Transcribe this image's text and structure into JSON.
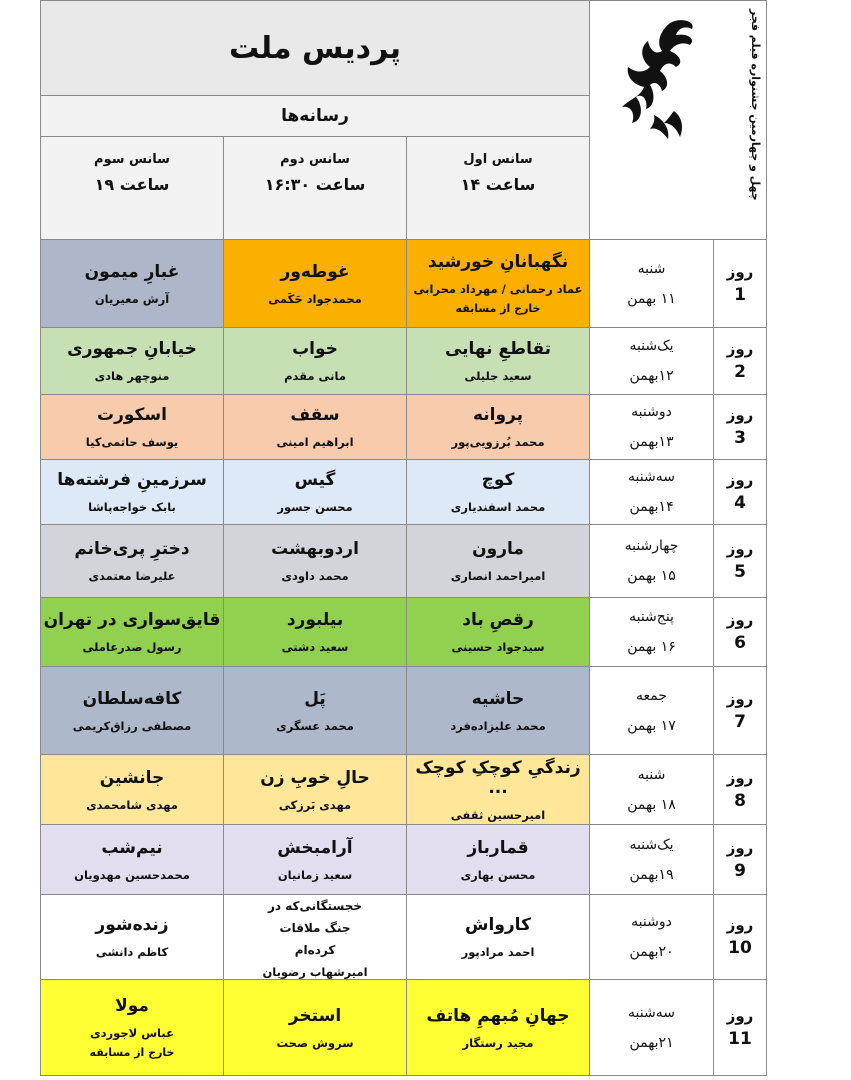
{
  "header": {
    "title": "پردیس ملت",
    "festival": "چهل و چهارمین جشنواره فیلم فجر",
    "section": "رسانه‌ها",
    "sessions": [
      {
        "name": "سانس اول",
        "time": "ساعت ۱۴"
      },
      {
        "name": "سانس دوم",
        "time": "ساعت ۱۶:۳۰"
      },
      {
        "name": "سانس سوم",
        "time": "ساعت ۱۹"
      }
    ]
  },
  "rows": [
    {
      "day_label": "روز",
      "day_number": "1",
      "weekday": "شنبه",
      "date": "۱۱ بهمن",
      "cells": [
        {
          "title": "نگهبانانِ خورشید",
          "director": "عماد رحمانی / مهرداد محرابی",
          "note": "خارج از مسابقه",
          "color": "#fbb000"
        },
        {
          "title": "غوطه‌ور",
          "director": "محمدجواد حَکَمی",
          "color": "#fbb000"
        },
        {
          "title": "غبارِ میمون",
          "director": "آرش معیریان",
          "color": "#aeb7c9"
        }
      ]
    },
    {
      "day_label": "روز",
      "day_number": "2",
      "weekday": "یک‌شنبه",
      "date": "۱۲بهمن",
      "cells": [
        {
          "title": "تقاطعِ نهایی",
          "director": "سعید جلیلی",
          "color": "#c6e0b4"
        },
        {
          "title": "خواب",
          "director": "مانی مقدم",
          "color": "#c6e0b4"
        },
        {
          "title": "خیابانِ جمهوری",
          "director": "منوچهر هادی",
          "color": "#c6e0b4"
        }
      ]
    },
    {
      "day_label": "روز",
      "day_number": "3",
      "weekday": "دوشنبه",
      "date": "۱۳بهمن",
      "cells": [
        {
          "title": "پروانه",
          "director": "محمد بُرزویی‌پور",
          "color": "#f8cbad"
        },
        {
          "title": "سقف",
          "director": "ابراهیم امینی",
          "color": "#f8cbad"
        },
        {
          "title": "اسکورت",
          "director": "یوسف حاتمی‌کیا",
          "color": "#f8cbad"
        }
      ]
    },
    {
      "day_label": "روز",
      "day_number": "4",
      "weekday": "سه‌شنبه",
      "date": "۱۴بهمن",
      "cells": [
        {
          "title": "کوچ",
          "director": "محمد اسفندیاری",
          "color": "#dde9f6"
        },
        {
          "title": "گیس",
          "director": "محسن جسور",
          "color": "#dde9f6"
        },
        {
          "title": "سرزمینِ فرشته‌ها",
          "director": "بابک خواجه‌پاشا",
          "color": "#dde9f6"
        }
      ]
    },
    {
      "day_label": "روز",
      "day_number": "5",
      "weekday": "چهارشنبه",
      "date": "۱۵ بهمن",
      "cells": [
        {
          "title": "مارون",
          "director": "امیراحمد انصاری",
          "color": "#d3d3da"
        },
        {
          "title": "اردوبهشت",
          "director": "محمد داودی",
          "color": "#d3d3da"
        },
        {
          "title": "دخترِ پری‌خانم",
          "director": "علیرضا معتمدی",
          "color": "#d3d3da"
        }
      ]
    },
    {
      "day_label": "روز",
      "day_number": "6",
      "weekday": "پنج‌شنبه",
      "date": "۱۶ بهمن",
      "cells": [
        {
          "title": "رقصِ باد",
          "director": "سیدجواد حسینی",
          "color": "#92d050"
        },
        {
          "title": "بیلبورد",
          "director": "سعید دشتی",
          "color": "#92d050"
        },
        {
          "title": "قایق‌سواری در تهران",
          "director": "رسول صدرعاملی",
          "color": "#92d050"
        }
      ]
    },
    {
      "day_label": "روز",
      "day_number": "7",
      "weekday": "جمعه",
      "date": "۱۷ بهمن",
      "cells": [
        {
          "title": "حاشیه",
          "director": "محمد علیزاده‌فرد",
          "color": "#adb9ca"
        },
        {
          "title": "پَل",
          "director": "محمد عسگری",
          "color": "#adb9ca"
        },
        {
          "title": "کافه‌سلطان",
          "director": "مصطفی رزاق‌کریمی",
          "color": "#adb9ca"
        }
      ]
    },
    {
      "day_label": "روز",
      "day_number": "8",
      "weekday": "شنبه",
      "date": "۱۸ بهمن",
      "cells": [
        {
          "title": "زندگیِ کوچکِ کوچک ...",
          "director": "امیرحسین ثقفی",
          "color": "#ffe699"
        },
        {
          "title": "حالِ خوبِ زن",
          "director": "مهدی بَرزکی",
          "color": "#ffe699"
        },
        {
          "title": "جانشین",
          "director": "مهدی شامحمدی",
          "color": "#ffe699"
        }
      ]
    },
    {
      "day_label": "روز",
      "day_number": "9",
      "weekday": "یک‌شنبه",
      "date": "۱۹بهمن",
      "cells": [
        {
          "title": "قمارباز",
          "director": "محسن بهاری",
          "color": "#e2def0"
        },
        {
          "title": "آرامبخش",
          "director": "سعید زمانیان",
          "color": "#e2def0"
        },
        {
          "title": "نیم‌شب",
          "director": "محمدحسین مهدویان",
          "color": "#e2def0"
        }
      ]
    },
    {
      "day_label": "روز",
      "day_number": "10",
      "weekday": "دوشنبه",
      "date": "۲۰بهمن",
      "cells": [
        {
          "title": "کارواش",
          "director": "احمد مرادپور",
          "color": "#ffffff"
        },
        {
          "title": "خجستگانی‌که در جنگ ملاقات کرده‌ام",
          "director": "امیرشهاب رضویان",
          "color": "#ffffff",
          "small": true
        },
        {
          "title": "زنده‌شور",
          "director": "کاظم دانشی",
          "color": "#ffffff"
        }
      ]
    },
    {
      "day_label": "روز",
      "day_number": "11",
      "weekday": "سه‌شنبه",
      "date": "۲۱بهمن",
      "cells": [
        {
          "title": "جهانِ مُبهمِ هاتف",
          "director": "مجید رستگار",
          "color": "#ffff33"
        },
        {
          "title": "استخر",
          "director": "سروش صحت",
          "color": "#ffff33"
        },
        {
          "title": "مولا",
          "director": "عباس لاجوردی",
          "note": "خارج از مسابقه",
          "color": "#ffff33"
        }
      ]
    }
  ]
}
